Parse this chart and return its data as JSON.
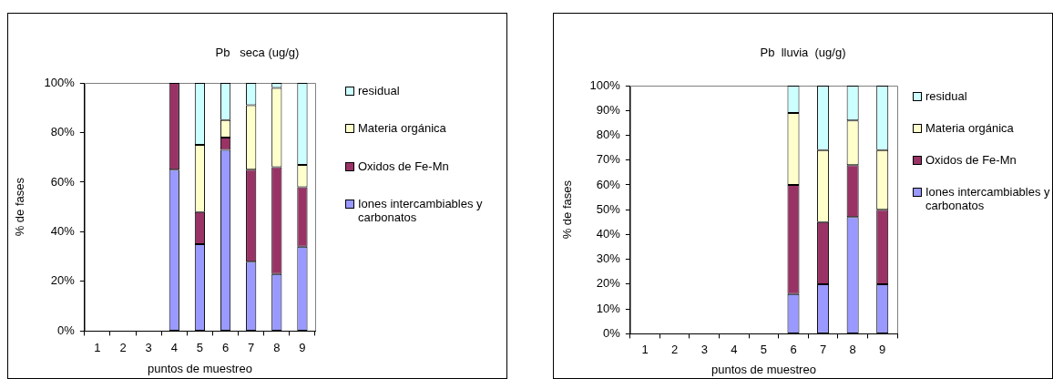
{
  "chart_data": [
    {
      "type": "bar",
      "title": "Pb   seca (ug/g)",
      "xlabel": "puntos de muestreo",
      "ylabel": "% de fases",
      "categories": [
        "1",
        "2",
        "3",
        "4",
        "5",
        "6",
        "7",
        "8",
        "9"
      ],
      "stacked": true,
      "ylim": [
        0,
        100
      ],
      "yticks": [
        {
          "value": 0,
          "label": "0%"
        },
        {
          "value": 20,
          "label": "20%"
        },
        {
          "value": 40,
          "label": "40%"
        },
        {
          "value": 60,
          "label": "60%"
        },
        {
          "value": 80,
          "label": "80%"
        },
        {
          "value": 100,
          "label": "100%"
        }
      ],
      "grid": false,
      "legend": "right",
      "series": [
        {
          "name": "Iones intercambiables y carbonatos",
          "color": "#9999ff",
          "values": [
            null,
            null,
            null,
            65,
            35,
            73,
            28,
            23,
            34
          ]
        },
        {
          "name": "Oxidos de Fe-Mn",
          "color": "#993366",
          "values": [
            null,
            null,
            null,
            35,
            13,
            5,
            37,
            43,
            24
          ]
        },
        {
          "name": "Materia orgánica",
          "color": "#ffffcc",
          "values": [
            null,
            null,
            null,
            0,
            27,
            7,
            26,
            32,
            9
          ]
        },
        {
          "name": "residual",
          "color": "#ccffff",
          "values": [
            null,
            null,
            null,
            0,
            25,
            15,
            9,
            2,
            33
          ]
        }
      ]
    },
    {
      "type": "bar",
      "title": "Pb  lluvia  (ug/g)",
      "xlabel": "puntos de muestreo",
      "ylabel": "% de fases",
      "categories": [
        "1",
        "2",
        "3",
        "4",
        "5",
        "6",
        "7",
        "8",
        "9"
      ],
      "stacked": true,
      "ylim": [
        0,
        100
      ],
      "yticks": [
        {
          "value": 0,
          "label": "0%"
        },
        {
          "value": 10,
          "label": "10%"
        },
        {
          "value": 20,
          "label": "20%"
        },
        {
          "value": 30,
          "label": "30%"
        },
        {
          "value": 40,
          "label": "40%"
        },
        {
          "value": 50,
          "label": "50%"
        },
        {
          "value": 60,
          "label": "60%"
        },
        {
          "value": 70,
          "label": "70%"
        },
        {
          "value": 80,
          "label": "80%"
        },
        {
          "value": 90,
          "label": "90%"
        },
        {
          "value": 100,
          "label": "100%"
        }
      ],
      "grid": false,
      "legend": "right",
      "series": [
        {
          "name": "Iones intercambiables y carbonatos",
          "color": "#9999ff",
          "values": [
            null,
            null,
            null,
            null,
            null,
            16,
            20,
            47,
            20
          ]
        },
        {
          "name": "Oxidos de Fe-Mn",
          "color": "#993366",
          "values": [
            null,
            null,
            null,
            null,
            null,
            44,
            25,
            21,
            30
          ]
        },
        {
          "name": "Materia orgánica",
          "color": "#ffffcc",
          "values": [
            null,
            null,
            null,
            null,
            null,
            29,
            29,
            18,
            24
          ]
        },
        {
          "name": "residual",
          "color": "#ccffff",
          "values": [
            null,
            null,
            null,
            null,
            null,
            11,
            26,
            14,
            26
          ]
        }
      ]
    }
  ]
}
